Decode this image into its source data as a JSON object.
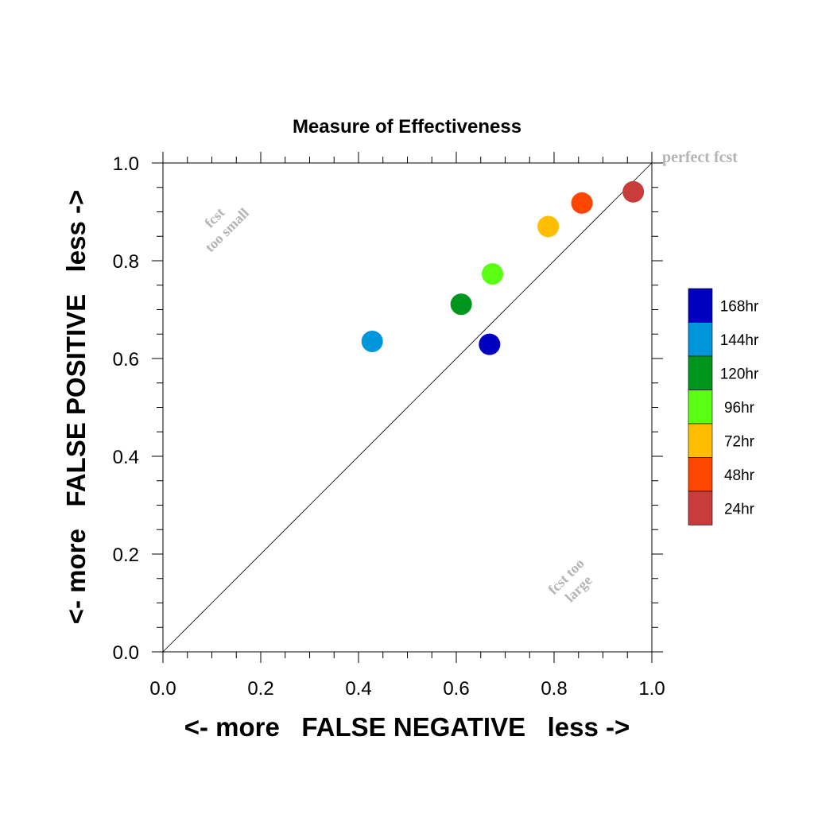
{
  "chart_data": {
    "type": "scatter",
    "title": "Measure of Effectiveness",
    "xlabel": "<- more   FALSE NEGATIVE   less ->",
    "ylabel": "<- more   FALSE POSITIVE   less ->",
    "xlim": [
      0.0,
      1.0
    ],
    "ylim": [
      0.0,
      1.0
    ],
    "xticks": [
      "0.0",
      "0.2",
      "0.4",
      "0.6",
      "0.8",
      "1.0"
    ],
    "yticks": [
      "0.0",
      "0.2",
      "0.4",
      "0.6",
      "0.8",
      "1.0"
    ],
    "reference_line": "diagonal y = x",
    "annotations": {
      "perfect": "perfect fcst",
      "too_small_line1": "fcst",
      "too_small_line2": "too small",
      "too_large_line1": "fcst too",
      "too_large_line2": "large"
    },
    "legend": {
      "placement": "right",
      "items": [
        {
          "label": "168hr",
          "color": "#0000c0"
        },
        {
          "label": "144hr",
          "color": "#0096dc"
        },
        {
          "label": "120hr",
          "color": "#00961e"
        },
        {
          "label": "96hr",
          "color": "#5aff14"
        },
        {
          "label": "72hr",
          "color": "#ffbe00"
        },
        {
          "label": "48hr",
          "color": "#ff4600"
        },
        {
          "label": "24hr",
          "color": "#c83c3c"
        }
      ]
    },
    "series": [
      {
        "name": "24hr",
        "x": 0.962,
        "y": 0.941,
        "color": "#c83c3c"
      },
      {
        "name": "48hr",
        "x": 0.857,
        "y": 0.918,
        "color": "#ff4600"
      },
      {
        "name": "72hr",
        "x": 0.788,
        "y": 0.87,
        "color": "#ffbe00"
      },
      {
        "name": "96hr",
        "x": 0.674,
        "y": 0.773,
        "color": "#5aff14"
      },
      {
        "name": "120hr",
        "x": 0.61,
        "y": 0.711,
        "color": "#00961e"
      },
      {
        "name": "144hr",
        "x": 0.428,
        "y": 0.635,
        "color": "#0096dc"
      },
      {
        "name": "168hr",
        "x": 0.668,
        "y": 0.629,
        "color": "#0000c0"
      }
    ]
  }
}
